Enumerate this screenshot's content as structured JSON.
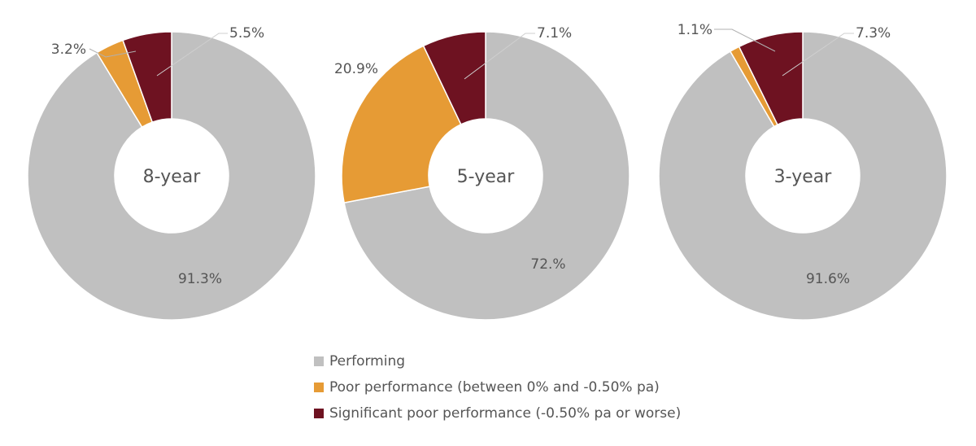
{
  "chart_data": [
    {
      "type": "pie",
      "center_label": "8-year",
      "slices": [
        {
          "name": "Performing",
          "value": 91.3,
          "label": "91.3%"
        },
        {
          "name": "Poor performance (between 0% and -0.50% pa)",
          "value": 3.2,
          "label": "3.2%"
        },
        {
          "name": "Significant poor performance (-0.50% pa or worse)",
          "value": 5.5,
          "label": "5.5%"
        }
      ]
    },
    {
      "type": "pie",
      "center_label": "5-year",
      "slices": [
        {
          "name": "Performing",
          "value": 72.0,
          "label": "72.%"
        },
        {
          "name": "Poor performance (between 0% and -0.50% pa)",
          "value": 20.9,
          "label": "20.9%"
        },
        {
          "name": "Significant poor performance (-0.50% pa or worse)",
          "value": 7.1,
          "label": "7.1%"
        }
      ]
    },
    {
      "type": "pie",
      "center_label": "3-year",
      "slices": [
        {
          "name": "Performing",
          "value": 91.6,
          "label": "91.6%"
        },
        {
          "name": "Poor performance (between 0% and -0.50% pa)",
          "value": 1.1,
          "label": "1.1%"
        },
        {
          "name": "Significant poor performance (-0.50% pa or worse)",
          "value": 7.3,
          "label": "7.3%"
        }
      ]
    }
  ],
  "colors": {
    "performing": "#c0c0c0",
    "poor": "#e69b35",
    "significant": "#6e1221"
  },
  "legend": {
    "items": [
      {
        "label": "Performing",
        "color": "#c0c0c0"
      },
      {
        "label": "Poor performance (between 0% and -0.50% pa)",
        "color": "#e69b35"
      },
      {
        "label": "Significant poor performance (-0.50% pa or worse)",
        "color": "#6e1221"
      }
    ]
  }
}
